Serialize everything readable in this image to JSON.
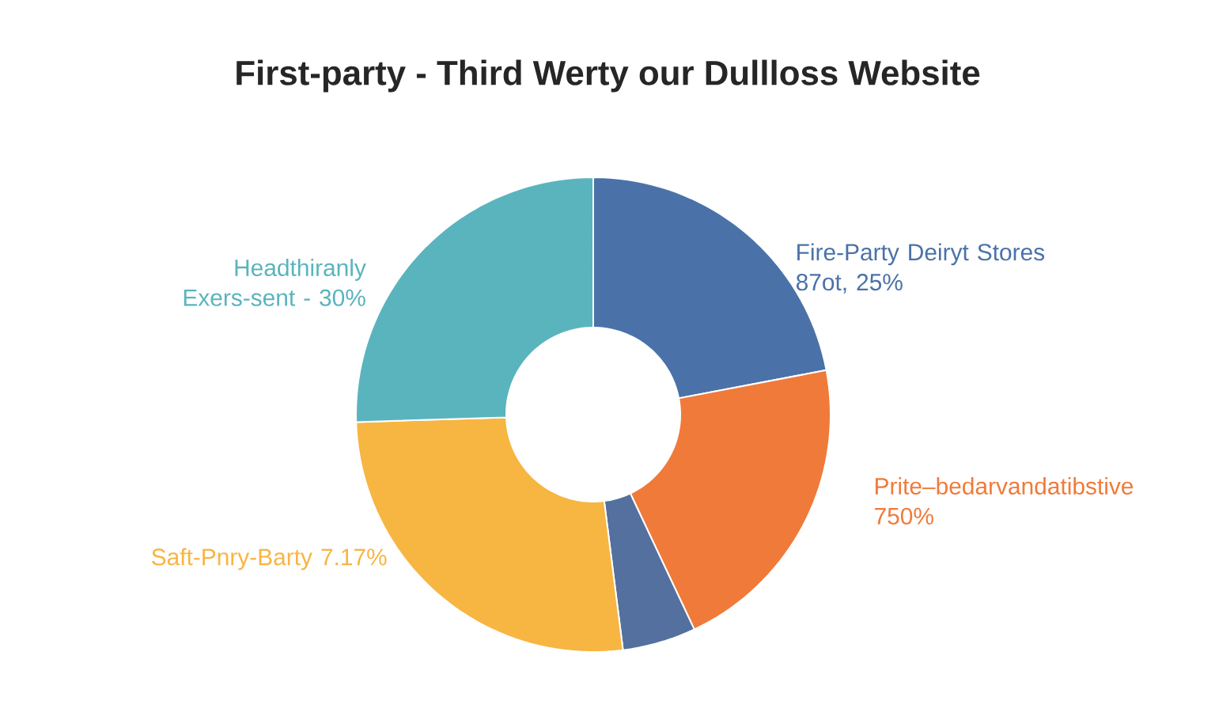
{
  "chart_data": {
    "type": "donut",
    "title": "First-party - Third Werty our Dullloss Website",
    "categories": [
      "Fire-Party Deiryt Stores 87ot, 25%",
      "Prite–bedarvandatibstive 750%",
      null,
      "Saft-Pnry-Barty 7.17%",
      "Headthiranly Exers-sent - 30%"
    ],
    "values": [
      22,
      21,
      5,
      26.5,
      25.5
    ],
    "colors": [
      "#4a72a8",
      "#f07a3a",
      "#53709e",
      "#f7b542",
      "#5ab4bd"
    ]
  }
}
